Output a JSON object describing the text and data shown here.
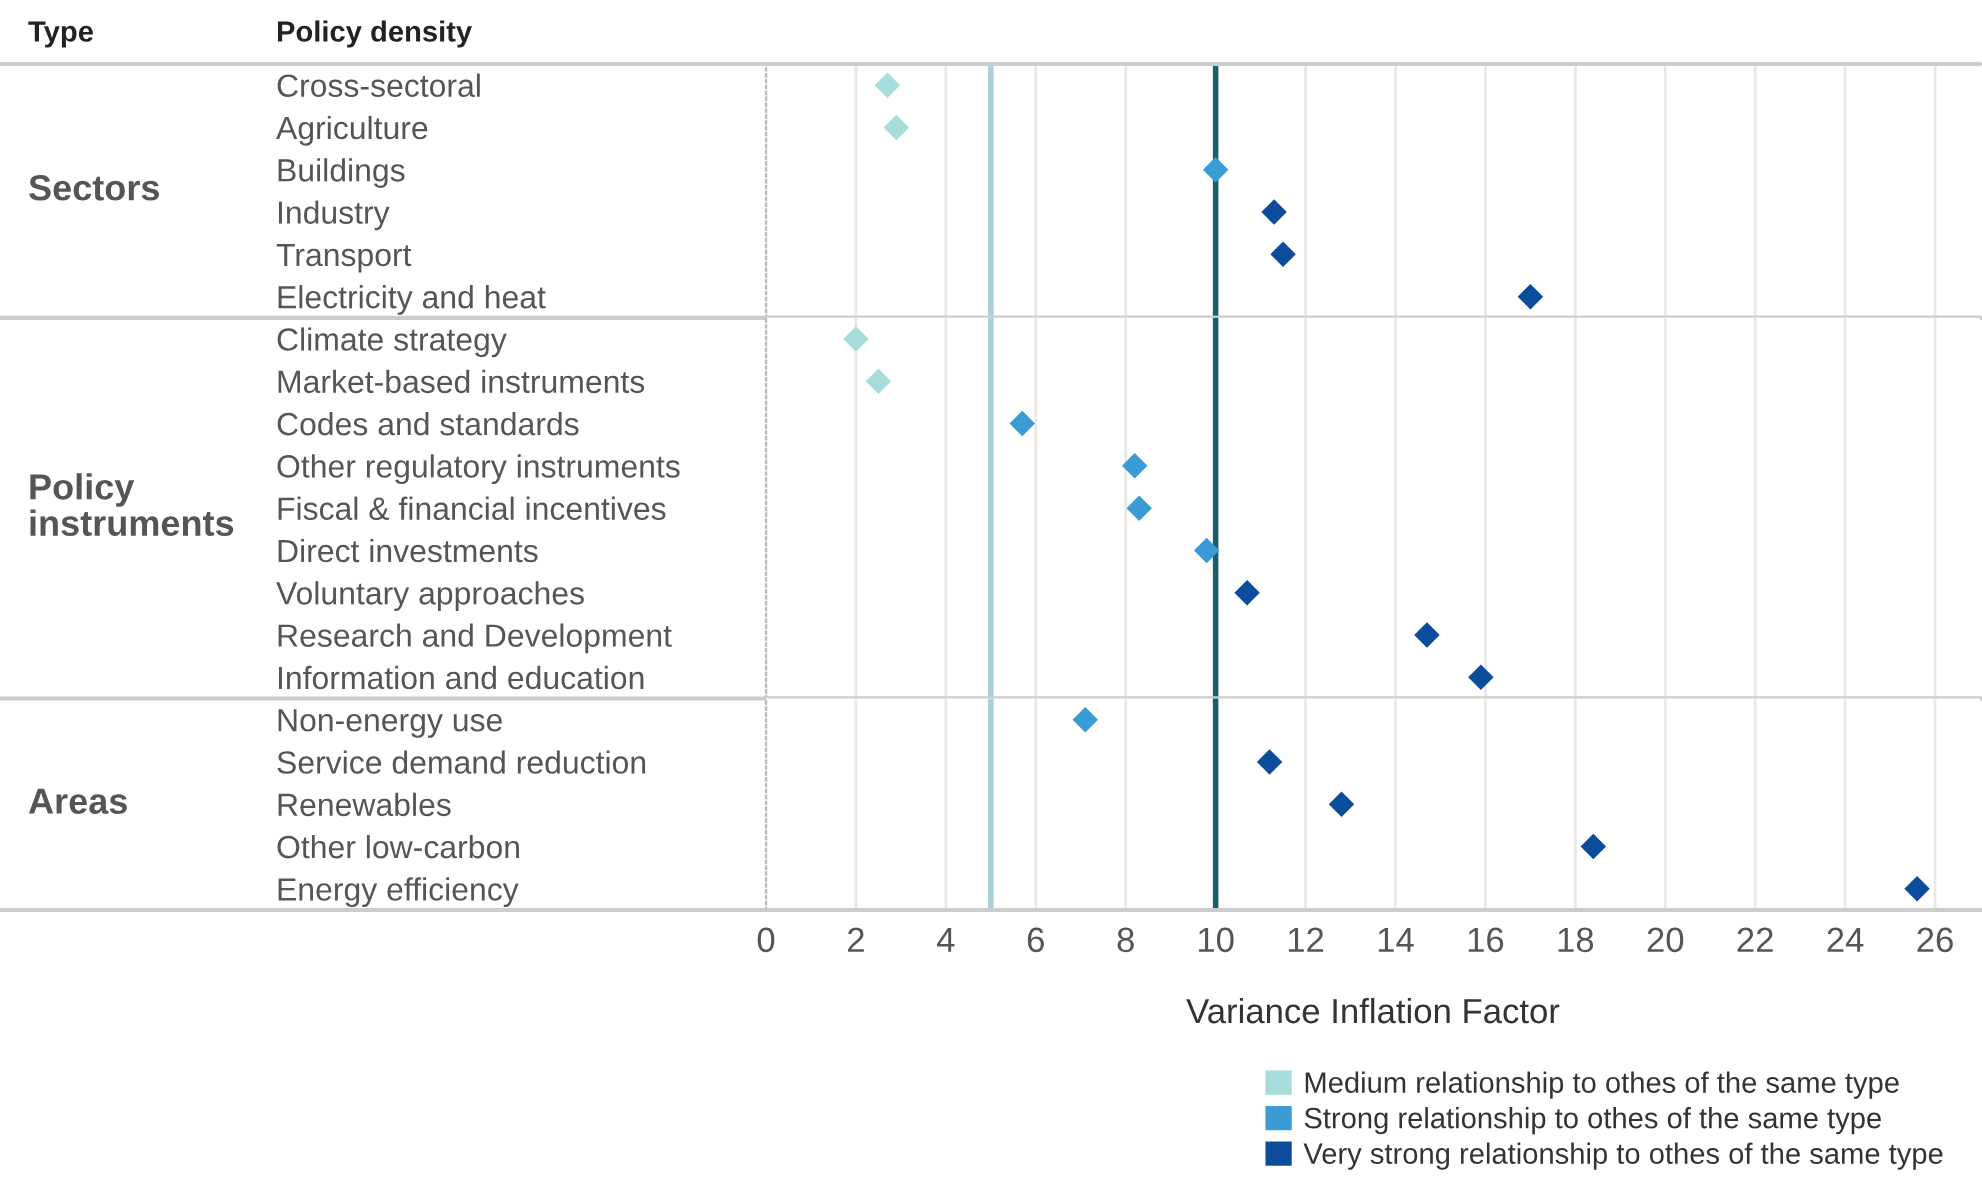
{
  "chart_data": [
    {
      "type": "scatter",
      "orientation": "horizontal",
      "ylabel": "Sectors",
      "annotations": [
        "Type",
        "Policy density"
      ],
      "categories": [
        "Cross-sectoral",
        "Agriculture",
        "Buildings",
        "Industry",
        "Transport",
        "Electricity and heat"
      ],
      "series": [
        {
          "color": "#a6dcdc",
          "values": [
            2.7,
            2.9,
            null,
            null,
            null,
            null
          ]
        },
        {
          "color": "#3a9bd5",
          "values": [
            null,
            null,
            10.0,
            null,
            null,
            null
          ]
        },
        {
          "color": "#0b4d9c",
          "values": [
            null,
            null,
            null,
            11.3,
            11.5,
            17.0
          ]
        }
      ],
      "xlim": [
        0,
        27
      ],
      "xticks": [
        0,
        2,
        4,
        6,
        8,
        10,
        12,
        14,
        16,
        18,
        20,
        22,
        24,
        26
      ],
      "tick_labels": "y",
      "ref_lines": [
        {
          "axis": "x",
          "value": 5,
          "color": "#a8d0d8"
        },
        {
          "axis": "x",
          "value": 10,
          "color": "#1b5e6e"
        }
      ],
      "grid": "x",
      "marker": "diamond"
    },
    {
      "type": "scatter",
      "orientation": "horizontal",
      "ylabel": "Policy instruments",
      "categories": [
        "Climate strategy",
        "Market-based instruments",
        "Codes and standards",
        "Other regulatory instruments",
        "Fiscal & financial incentives",
        "Direct investments",
        "Voluntary approaches",
        "Research and Development",
        "Information and education"
      ],
      "series": [
        {
          "color": "#a6dcdc",
          "values": [
            2.0,
            2.5,
            null,
            null,
            null,
            null,
            null,
            null,
            null
          ]
        },
        {
          "color": "#3a9bd5",
          "values": [
            null,
            null,
            5.7,
            8.2,
            8.3,
            9.8,
            null,
            null,
            null
          ]
        },
        {
          "color": "#0b4d9c",
          "values": [
            null,
            null,
            null,
            null,
            null,
            null,
            10.7,
            14.7,
            15.9
          ]
        }
      ],
      "xlim": [
        0,
        27
      ],
      "xticks": [
        0,
        2,
        4,
        6,
        8,
        10,
        12,
        14,
        16,
        18,
        20,
        22,
        24,
        26
      ],
      "tick_labels": "y",
      "ref_lines": [
        {
          "axis": "x",
          "value": 5,
          "color": "#a8d0d8"
        },
        {
          "axis": "x",
          "value": 10,
          "color": "#1b5e6e"
        }
      ],
      "grid": "x",
      "marker": "diamond"
    },
    {
      "type": "scatter",
      "orientation": "horizontal",
      "ylabel": "Areas",
      "xlabel": "Variance Inflation Factor",
      "categories": [
        "Non-energy use",
        "Service demand reduction",
        "Renewables",
        "Other low-carbon",
        "Energy efficiency"
      ],
      "series": [
        {
          "name": "Medium relationship to othes of the same type",
          "color": "#a6dcdc",
          "values": [
            null,
            null,
            null,
            null,
            null
          ]
        },
        {
          "name": "Strong relationship to othes of the same type",
          "color": "#3a9bd5",
          "values": [
            7.1,
            null,
            null,
            null,
            null
          ]
        },
        {
          "name": "Very strong relationship to othes of the same type",
          "color": "#0b4d9c",
          "values": [
            null,
            11.2,
            12.8,
            18.4,
            25.6
          ]
        }
      ],
      "xlim": [
        0,
        27
      ],
      "xticks": [
        0,
        2,
        4,
        6,
        8,
        10,
        12,
        14,
        16,
        18,
        20,
        22,
        24,
        26
      ],
      "ref_lines": [
        {
          "axis": "x",
          "value": 5,
          "color": "#a8d0d8"
        },
        {
          "axis": "x",
          "value": 10,
          "color": "#1b5e6e"
        }
      ],
      "grid": "x",
      "marker": "diamond",
      "legend": "bottom right"
    }
  ]
}
